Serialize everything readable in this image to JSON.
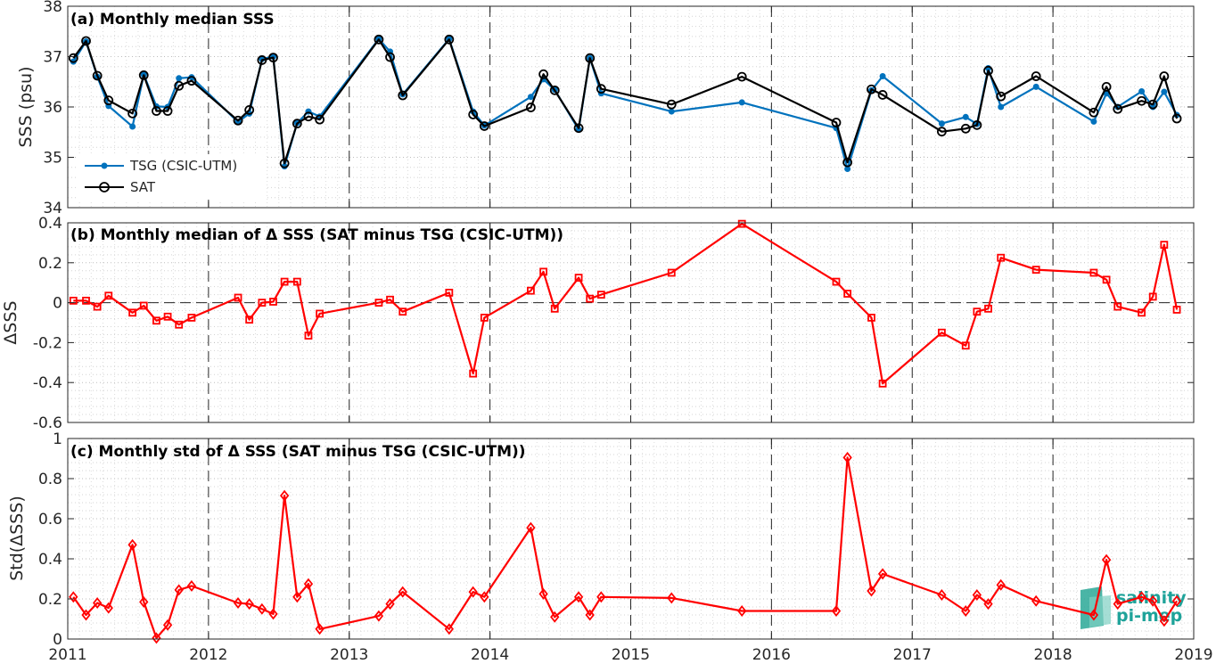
{
  "figure": {
    "x_axis": {
      "ticks": [
        "2011",
        "2012",
        "2013",
        "2014",
        "2015",
        "2016",
        "2017",
        "2018",
        "2019"
      ],
      "range": [
        2011,
        2019
      ]
    },
    "logo": {
      "line1": "salinity",
      "line2": "pi-mep",
      "color": "#1fa39a"
    }
  },
  "chart_data": [
    {
      "type": "line",
      "title": "(a) Monthly median SSS",
      "ylabel": "SSS (psu)",
      "ylim": [
        34,
        38
      ],
      "yticks": [
        "34",
        "35",
        "36",
        "37",
        "38"
      ],
      "grid": true,
      "legend": {
        "placement": "bottom-left",
        "entries": [
          "TSG (CSIC-UTM)",
          "SAT"
        ]
      },
      "series": [
        {
          "name": "TSG (CSIC-UTM)",
          "color": "#0072bd",
          "marker": "dot",
          "x": [
            2011.04,
            2011.13,
            2011.21,
            2011.29,
            2011.46,
            2011.54,
            2011.63,
            2011.71,
            2011.79,
            2011.88,
            2012.21,
            2012.29,
            2012.38,
            2012.46,
            2012.54,
            2012.63,
            2012.71,
            2012.79,
            2013.21,
            2013.29,
            2013.38,
            2013.71,
            2013.88,
            2013.96,
            2014.29,
            2014.38,
            2014.46,
            2014.63,
            2014.71,
            2014.79,
            2015.29,
            2015.79,
            2016.46,
            2016.54,
            2016.71,
            2016.79,
            2017.21,
            2017.38,
            2017.46,
            2017.54,
            2017.63,
            2017.88,
            2018.29,
            2018.38,
            2018.46,
            2018.63,
            2018.71,
            2018.79,
            2018.88
          ],
          "y": [
            36.9,
            37.3,
            36.6,
            36.02,
            35.61,
            36.64,
            36.01,
            36.0,
            36.57,
            36.59,
            35.7,
            35.87,
            36.95,
            37.0,
            34.82,
            35.68,
            35.91,
            35.81,
            37.35,
            37.1,
            36.25,
            37.35,
            35.91,
            35.63,
            36.2,
            36.55,
            36.34,
            35.55,
            36.97,
            36.27,
            35.91,
            36.09,
            35.58,
            34.77,
            36.33,
            36.61,
            35.67,
            35.8,
            35.66,
            36.77,
            36.0,
            36.4,
            35.71,
            36.27,
            36.0,
            36.31,
            36.0,
            36.3,
            35.84
          ]
        },
        {
          "name": "SAT",
          "color": "#000000",
          "marker": "circle",
          "x": [
            2011.04,
            2011.13,
            2011.21,
            2011.29,
            2011.46,
            2011.54,
            2011.63,
            2011.71,
            2011.79,
            2011.88,
            2012.21,
            2012.29,
            2012.38,
            2012.46,
            2012.54,
            2012.63,
            2012.71,
            2012.79,
            2013.21,
            2013.29,
            2013.38,
            2013.71,
            2013.88,
            2013.96,
            2014.29,
            2014.38,
            2014.46,
            2014.63,
            2014.71,
            2014.79,
            2015.29,
            2015.79,
            2016.46,
            2016.54,
            2016.71,
            2016.79,
            2017.21,
            2017.38,
            2017.46,
            2017.54,
            2017.63,
            2017.88,
            2018.29,
            2018.38,
            2018.46,
            2018.63,
            2018.71,
            2018.79,
            2018.88
          ],
          "y": [
            36.97,
            37.31,
            36.62,
            36.13,
            35.87,
            36.63,
            35.92,
            35.92,
            36.42,
            36.52,
            35.73,
            35.94,
            36.93,
            36.98,
            34.88,
            35.67,
            35.81,
            35.75,
            37.34,
            36.99,
            36.23,
            37.34,
            35.85,
            35.62,
            35.99,
            36.65,
            36.33,
            35.58,
            36.97,
            36.36,
            36.05,
            36.6,
            35.69,
            34.9,
            36.35,
            36.24,
            35.51,
            35.57,
            35.64,
            36.72,
            36.21,
            36.61,
            35.89,
            36.4,
            35.96,
            36.12,
            36.05,
            36.61,
            35.77
          ]
        }
      ]
    },
    {
      "type": "line",
      "title": "(b) Monthly median of Δ SSS (SAT minus TSG (CSIC-UTM))",
      "ylabel": "ΔSSS",
      "ylim": [
        -0.6,
        0.4
      ],
      "yticks": [
        "-0.6",
        "-0.4",
        "-0.2",
        "0",
        "0.2",
        "0.4"
      ],
      "grid": true,
      "zero_line": true,
      "series": [
        {
          "color": "#ff0000",
          "marker": "square",
          "x": [
            2011.04,
            2011.13,
            2011.21,
            2011.29,
            2011.46,
            2011.54,
            2011.63,
            2011.71,
            2011.79,
            2011.88,
            2012.21,
            2012.29,
            2012.38,
            2012.46,
            2012.54,
            2012.63,
            2012.71,
            2012.79,
            2013.21,
            2013.29,
            2013.38,
            2013.71,
            2013.88,
            2013.96,
            2014.29,
            2014.38,
            2014.46,
            2014.63,
            2014.71,
            2014.79,
            2015.29,
            2015.79,
            2016.46,
            2016.54,
            2016.71,
            2016.79,
            2017.21,
            2017.38,
            2017.46,
            2017.54,
            2017.63,
            2017.88,
            2018.29,
            2018.38,
            2018.46,
            2018.63,
            2018.71,
            2018.79,
            2018.88
          ],
          "y": [
            0.01,
            0.01,
            -0.02,
            0.035,
            -0.05,
            -0.015,
            -0.09,
            -0.07,
            -0.11,
            -0.075,
            0.025,
            -0.085,
            0,
            0.005,
            0.105,
            0.105,
            -0.165,
            -0.055,
            0,
            0.015,
            -0.045,
            0.05,
            -0.355,
            -0.075,
            0.06,
            0.155,
            -0.03,
            0.125,
            0.02,
            0.04,
            0.15,
            0.395,
            0.105,
            0.045,
            -0.075,
            -0.405,
            -0.15,
            -0.215,
            -0.045,
            -0.03,
            0.225,
            0.165,
            0.15,
            0.115,
            -0.02,
            -0.05,
            0.03,
            0.29,
            -0.035
          ]
        }
      ]
    },
    {
      "type": "line",
      "title": "(c) Monthly std of Δ SSS (SAT minus TSG (CSIC-UTM))",
      "ylabel": "Std(ΔSSS)",
      "ylim": [
        0,
        1
      ],
      "yticks": [
        "0",
        "0.2",
        "0.4",
        "0.6",
        "0.8",
        "1"
      ],
      "grid": true,
      "series": [
        {
          "color": "#ff0000",
          "marker": "diamond",
          "x": [
            2011.04,
            2011.13,
            2011.21,
            2011.29,
            2011.46,
            2011.54,
            2011.63,
            2011.71,
            2011.79,
            2011.88,
            2012.21,
            2012.29,
            2012.38,
            2012.46,
            2012.54,
            2012.63,
            2012.71,
            2012.79,
            2013.21,
            2013.29,
            2013.38,
            2013.71,
            2013.88,
            2013.96,
            2014.29,
            2014.38,
            2014.46,
            2014.63,
            2014.71,
            2014.79,
            2015.29,
            2015.79,
            2016.46,
            2016.54,
            2016.71,
            2016.79,
            2017.21,
            2017.38,
            2017.46,
            2017.54,
            2017.63,
            2017.88,
            2018.29,
            2018.38,
            2018.46,
            2018.63,
            2018.71,
            2018.79,
            2018.88
          ],
          "y": [
            0.21,
            0.12,
            0.18,
            0.155,
            0.47,
            0.185,
            0.005,
            0.07,
            0.245,
            0.265,
            0.18,
            0.175,
            0.15,
            0.125,
            0.715,
            0.21,
            0.275,
            0.05,
            0.115,
            0.175,
            0.235,
            0.05,
            0.235,
            0.21,
            0.555,
            0.225,
            0.11,
            0.21,
            0.12,
            0.21,
            0.205,
            0.14,
            0.14,
            0.905,
            0.24,
            0.325,
            0.22,
            0.14,
            0.22,
            0.175,
            0.27,
            0.19,
            0.12,
            0.395,
            0.175,
            0.21,
            0.19,
            0.09,
            0.19
          ]
        }
      ]
    }
  ]
}
